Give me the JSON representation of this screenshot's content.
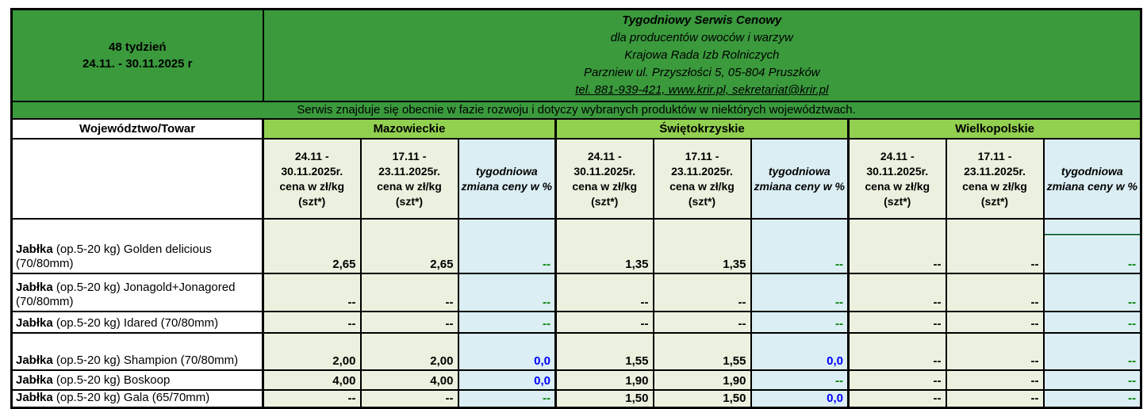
{
  "header": {
    "week_line1": "48 tydzień",
    "week_line2": "24.11. - 30.11.2025 r",
    "org": {
      "title": "Tygodniowy Serwis Cenowy",
      "subtitle": "dla producentów owoców i warzyw",
      "org_name": "Krajowa Rada Izb Rolniczych",
      "address": "Parzniew ul. Przyszłości 5, 05-804 Pruszków",
      "contact": "tel. 881-939-421, www.krir.pl, sekretariat@krir.pl"
    },
    "notice": "Serwis znajduje się obecnie w fazie rozwoju i dotyczy wybranych produktów w niektórych województwach."
  },
  "table": {
    "label_header": "Województwo/Towar",
    "regions": [
      "Mazowieckie",
      "Świętokrzyskie",
      "Wielkopolskie"
    ],
    "col_headers": {
      "current": "24.11 -\n30.11.2025r.\ncena w zł/kg\n(szt*)",
      "previous": "17.11 -\n23.11.2025r.\ncena w zł/kg\n(szt*)",
      "change": "tygodniowa zmiana ceny w %"
    },
    "rows": [
      {
        "product_bold": "Jabłka",
        "product_rest": "(op.5-20 kg) Golden delicious (70/80mm)",
        "values": [
          {
            "text": "2,65",
            "color": "black"
          },
          {
            "text": "2,65",
            "color": "black"
          },
          {
            "text": "--",
            "color": "green"
          },
          {
            "text": "1,35",
            "color": "black"
          },
          {
            "text": "1,35",
            "color": "black"
          },
          {
            "text": "--",
            "color": "green"
          },
          {
            "text": "--",
            "color": "black"
          },
          {
            "text": "--",
            "color": "black"
          },
          {
            "text": "--",
            "color": "green",
            "selected": true
          }
        ]
      },
      {
        "product_bold": "Jabłka",
        "product_rest": "(op.5-20 kg) Jonagold+Jonagored (70/80mm)",
        "values": [
          {
            "text": "--",
            "color": "black"
          },
          {
            "text": "--",
            "color": "black"
          },
          {
            "text": "--",
            "color": "green"
          },
          {
            "text": "--",
            "color": "black"
          },
          {
            "text": "--",
            "color": "black"
          },
          {
            "text": "--",
            "color": "green"
          },
          {
            "text": "--",
            "color": "black"
          },
          {
            "text": "--",
            "color": "black"
          },
          {
            "text": "--",
            "color": "green"
          }
        ]
      },
      {
        "product_bold": "Jabłka",
        "product_rest": "(op.5-20 kg) Idared (70/80mm)",
        "values": [
          {
            "text": "--",
            "color": "black"
          },
          {
            "text": "--",
            "color": "black"
          },
          {
            "text": "--",
            "color": "green"
          },
          {
            "text": "--",
            "color": "black"
          },
          {
            "text": "--",
            "color": "black"
          },
          {
            "text": "--",
            "color": "green"
          },
          {
            "text": "--",
            "color": "black"
          },
          {
            "text": "--",
            "color": "black"
          },
          {
            "text": "--",
            "color": "green"
          }
        ]
      },
      {
        "product_bold": "Jabłka",
        "product_rest": "(op.5-20 kg) Shampion (70/80mm)",
        "values": [
          {
            "text": "2,00",
            "color": "black"
          },
          {
            "text": "2,00",
            "color": "black"
          },
          {
            "text": "0,0",
            "color": "blue"
          },
          {
            "text": "1,55",
            "color": "black"
          },
          {
            "text": "1,55",
            "color": "black"
          },
          {
            "text": "0,0",
            "color": "blue"
          },
          {
            "text": "--",
            "color": "black"
          },
          {
            "text": "--",
            "color": "black"
          },
          {
            "text": "--",
            "color": "green"
          }
        ]
      },
      {
        "product_bold": "Jabłka",
        "product_rest": "(op.5-20 kg) Boskoop",
        "values": [
          {
            "text": "4,00",
            "color": "black"
          },
          {
            "text": "4,00",
            "color": "black"
          },
          {
            "text": "0,0",
            "color": "blue"
          },
          {
            "text": "1,90",
            "color": "black"
          },
          {
            "text": "1,90",
            "color": "black"
          },
          {
            "text": "--",
            "color": "green"
          },
          {
            "text": "--",
            "color": "black"
          },
          {
            "text": "--",
            "color": "black"
          },
          {
            "text": "--",
            "color": "green"
          }
        ]
      },
      {
        "product_bold": "Jabłka",
        "product_rest": "(op.5-20 kg) Gala (65/70mm)",
        "values": [
          {
            "text": "--",
            "color": "black"
          },
          {
            "text": "--",
            "color": "black"
          },
          {
            "text": "--",
            "color": "green"
          },
          {
            "text": "1,50",
            "color": "black"
          },
          {
            "text": "1,50",
            "color": "black"
          },
          {
            "text": "0,0",
            "color": "blue"
          },
          {
            "text": "--",
            "color": "black"
          },
          {
            "text": "--",
            "color": "black"
          },
          {
            "text": "--",
            "color": "green"
          }
        ]
      }
    ]
  },
  "colors": {
    "header_green": "#3a9a3c",
    "region_green": "#92d050",
    "price_cell_bg": "#ebf1de",
    "change_cell_bg": "#daeef3",
    "selection_green": "#1e7145",
    "dash_green": "#008000",
    "change_blue": "#0000ff",
    "border": "#000000"
  }
}
